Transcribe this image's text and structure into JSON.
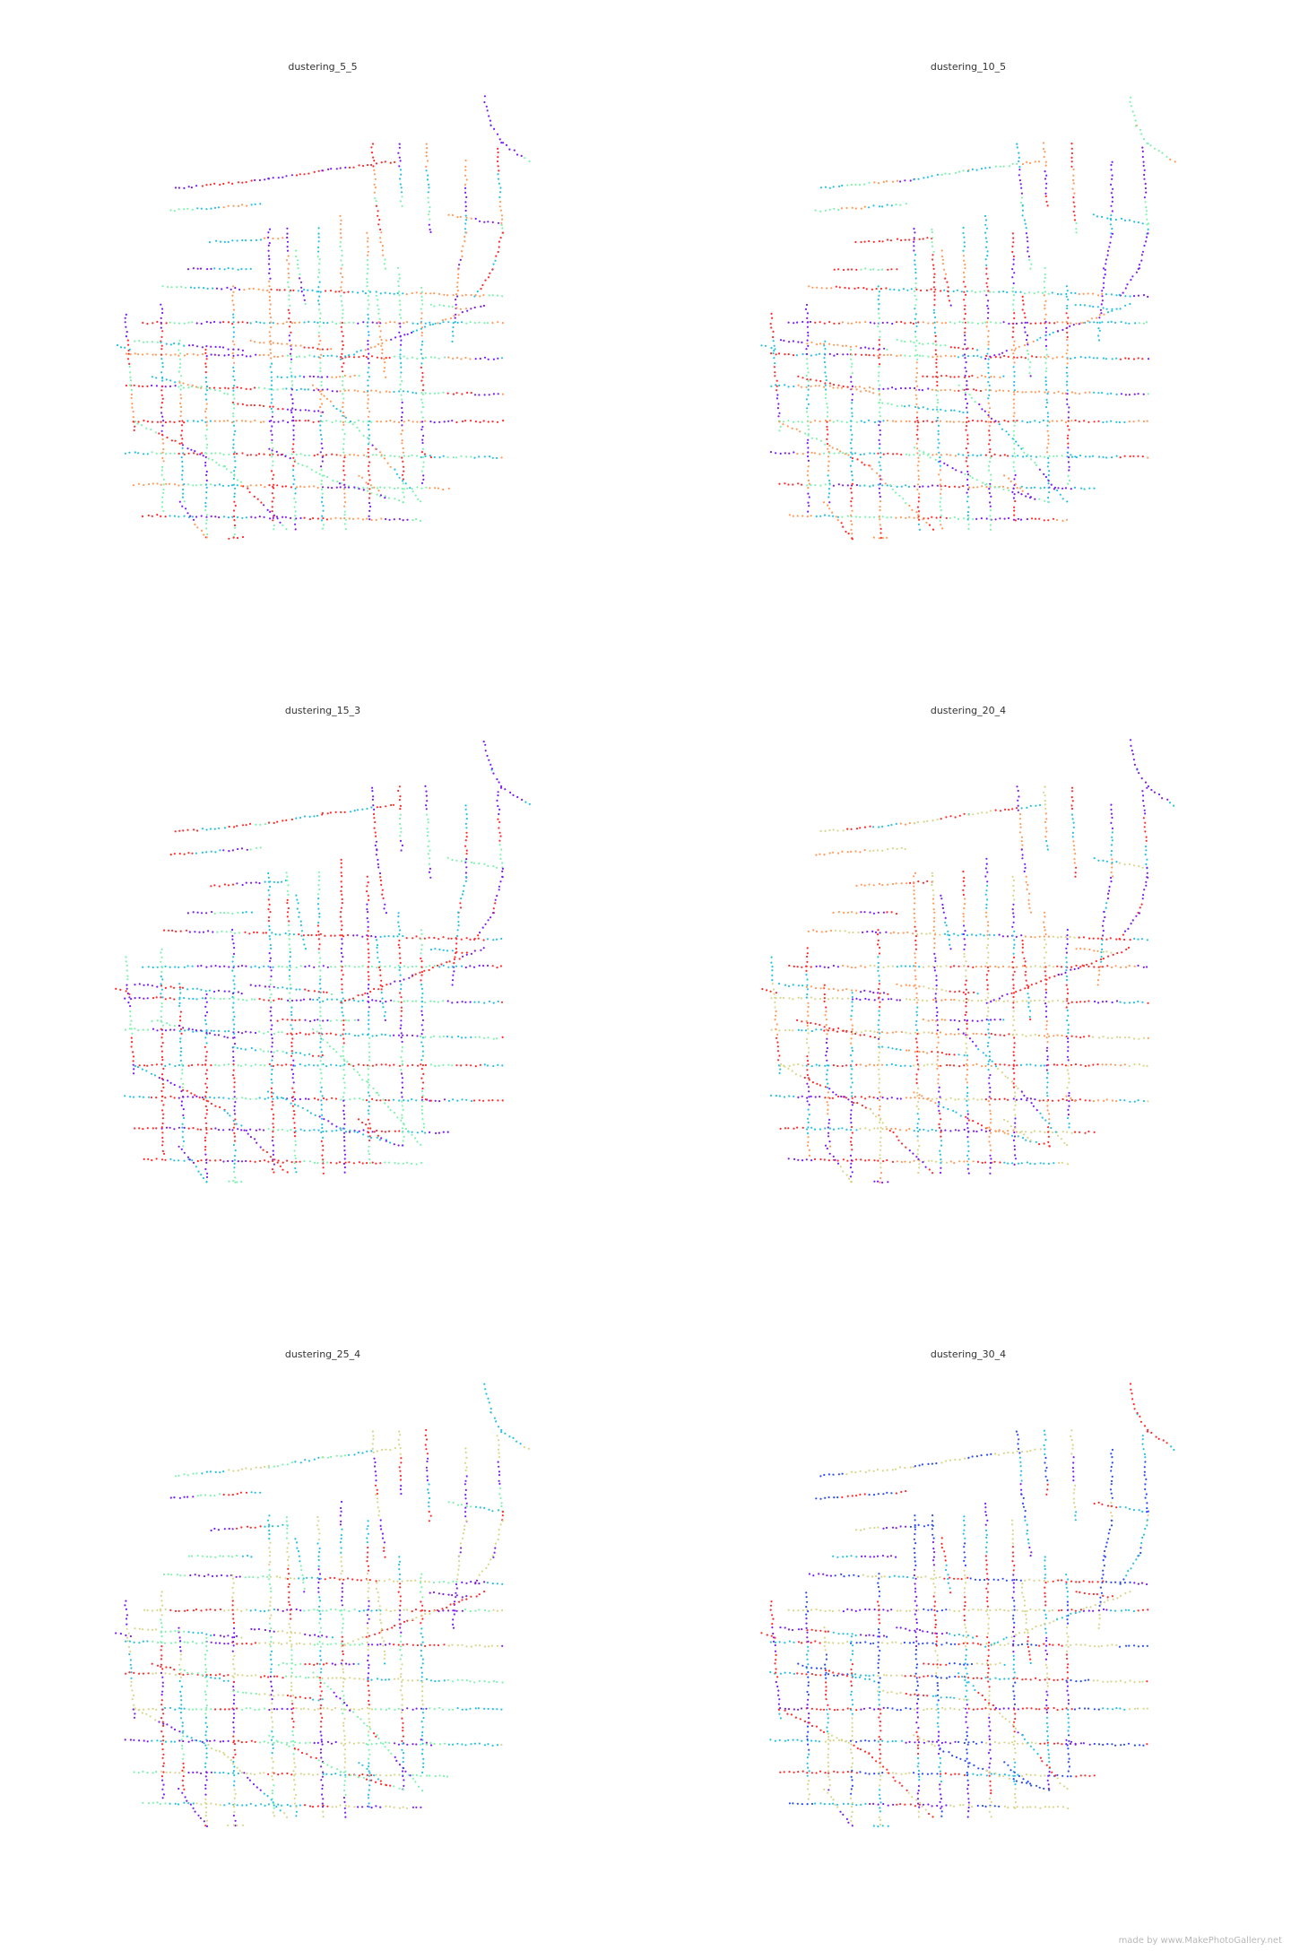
{
  "chart_data": [
    {
      "type": "scatter",
      "title": "dustering_5_5",
      "clusters": 5,
      "dominant_colors": [
        "#7a1cf2",
        "#26c0e0",
        "#7ff2b0",
        "#ff2a2a",
        "#ff9a5a"
      ],
      "grid": false,
      "axes": false
    },
    {
      "type": "scatter",
      "title": "dustering_10_5",
      "clusters": 10,
      "dominant_colors": [
        "#7a1cf2",
        "#26c0e0",
        "#7ff2b0",
        "#ff9a5a",
        "#ff2a2a"
      ],
      "grid": false,
      "axes": false
    },
    {
      "type": "scatter",
      "title": "dustering_15_3",
      "clusters": 15,
      "dominant_colors": [
        "#7a1cf2",
        "#ff2a2a",
        "#7ff2b0",
        "#26c0e0"
      ],
      "grid": false,
      "axes": false
    },
    {
      "type": "scatter",
      "title": "dustering_20_4",
      "clusters": 20,
      "dominant_colors": [
        "#7a1cf2",
        "#ff2a2a",
        "#26c0e0",
        "#d9d58a",
        "#ff9a5a"
      ],
      "grid": false,
      "axes": false
    },
    {
      "type": "scatter",
      "title": "dustering_25_4",
      "clusters": 25,
      "dominant_colors": [
        "#7a1cf2",
        "#26c0e0",
        "#d9d58a",
        "#ff2a2a",
        "#7ff2b0"
      ],
      "grid": false,
      "axes": false
    },
    {
      "type": "scatter",
      "title": "dustering_30_4",
      "clusters": 30,
      "dominant_colors": [
        "#7a1cf2",
        "#ff2a2a",
        "#26c0e0",
        "#d9d58a",
        "#2a4cf2"
      ],
      "grid": false,
      "axes": false
    }
  ],
  "credit": "made by www.MakePhotoGallery.net"
}
